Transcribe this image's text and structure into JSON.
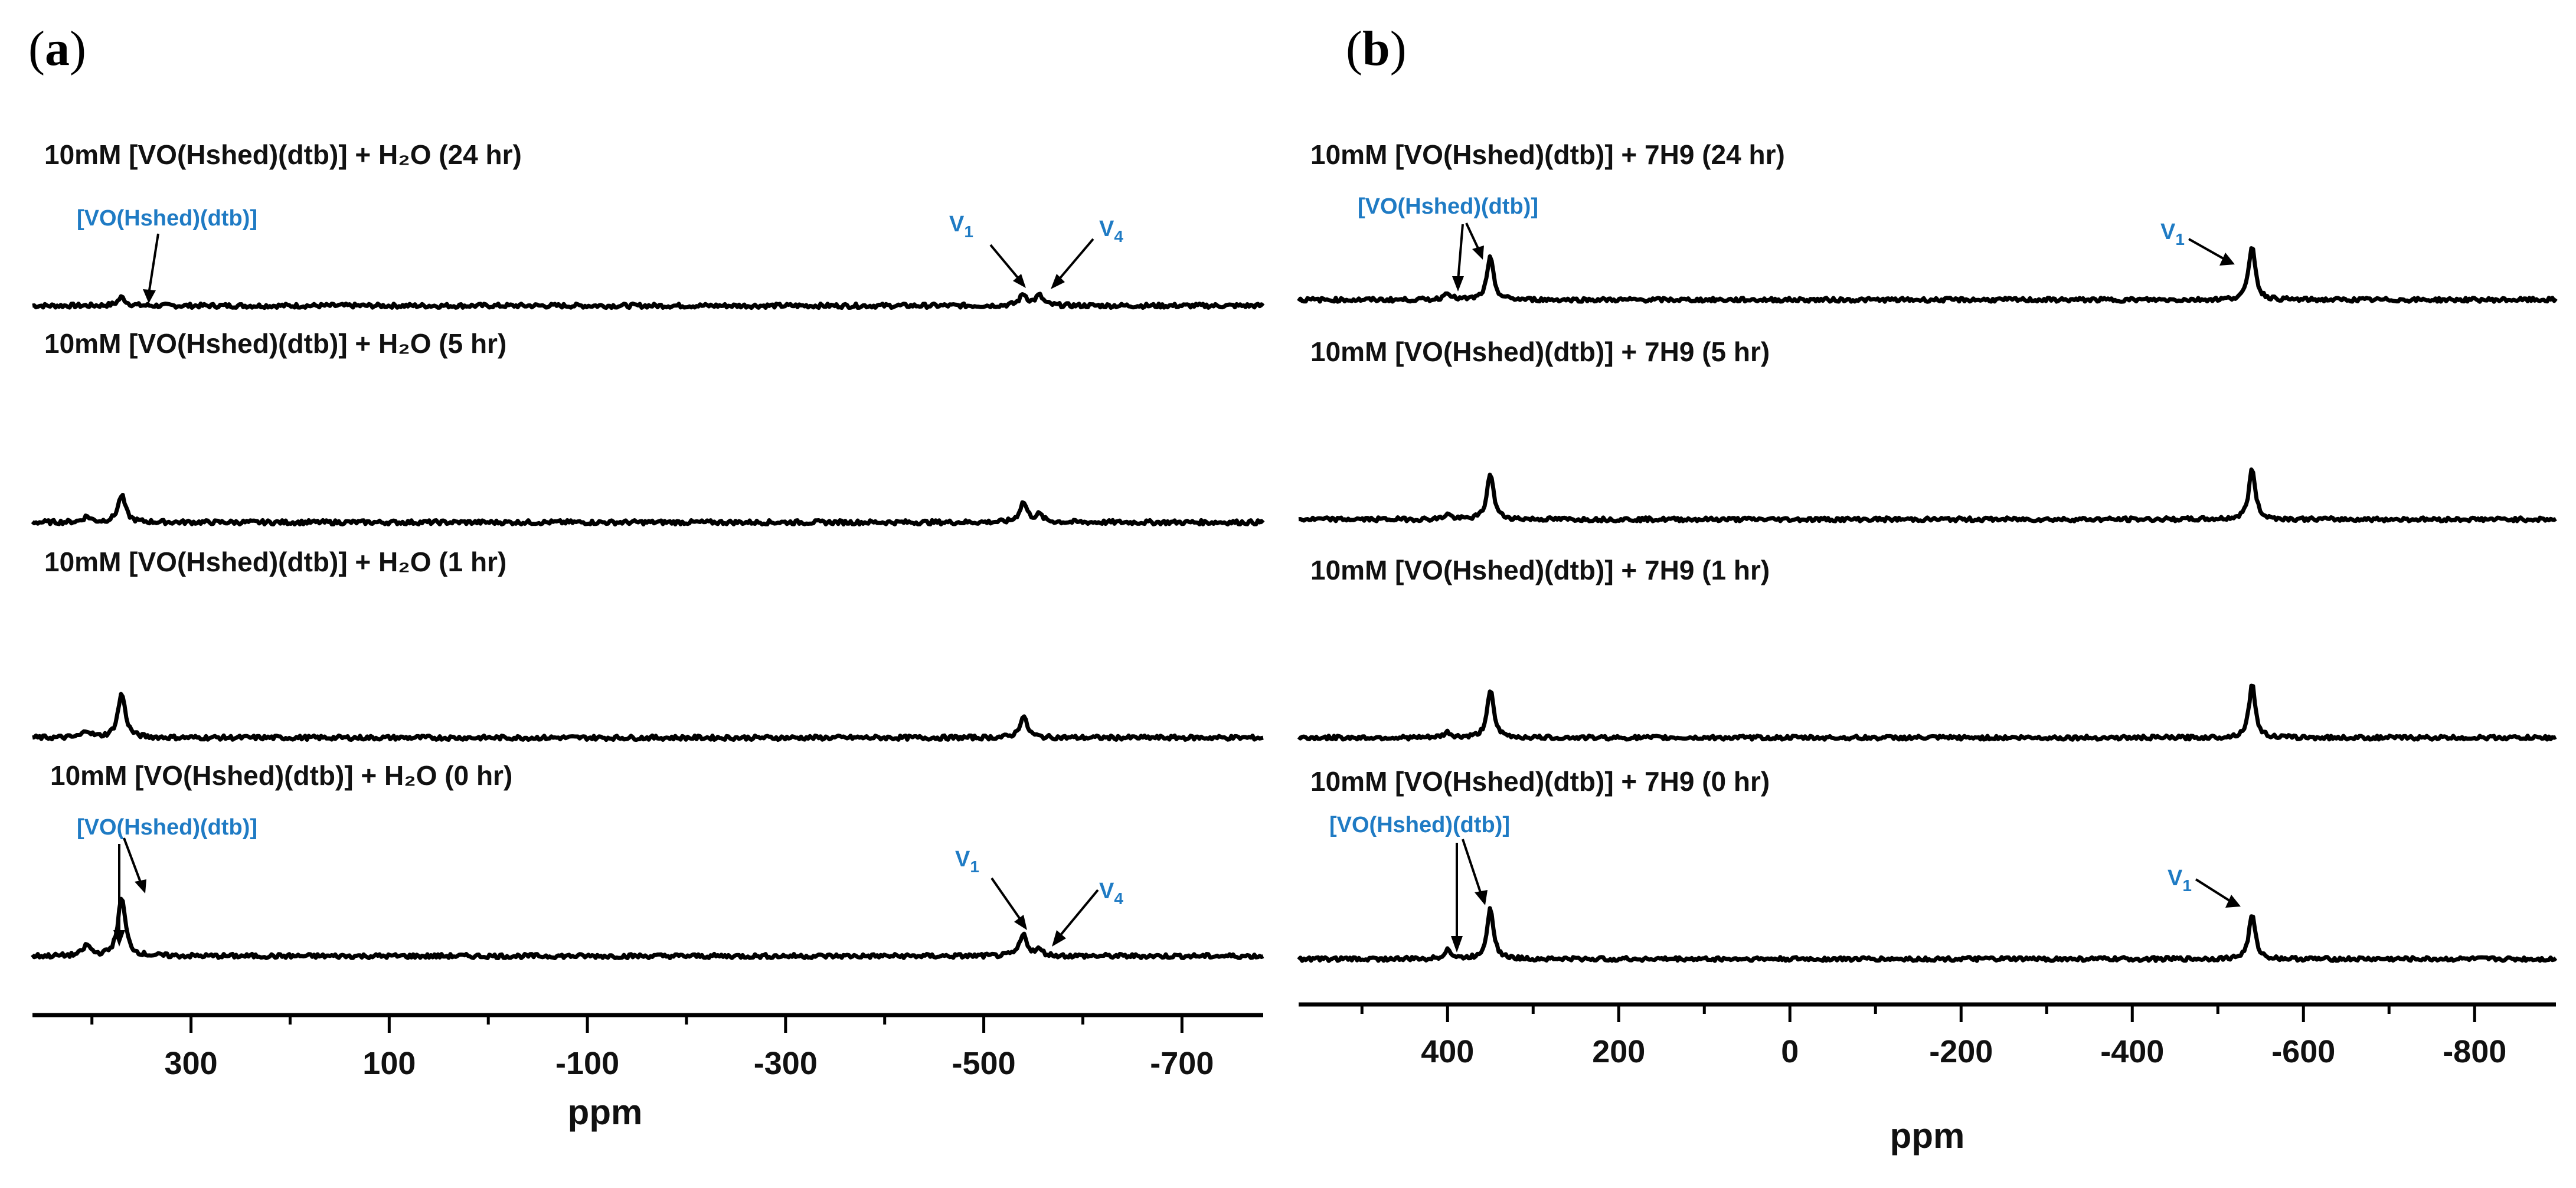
{
  "panels": [
    {
      "letter": "a",
      "axis_title": "ppm",
      "ticks": [
        "300",
        "100",
        "-100",
        "-300",
        "-500",
        "-700"
      ]
    },
    {
      "letter": "b",
      "axis_title": "ppm",
      "ticks": [
        "400",
        "200",
        "0",
        "-200",
        "-400",
        "-600",
        "-800"
      ]
    }
  ],
  "chart_data": [
    {
      "type": "line",
      "title": "",
      "xlabel": "ppm",
      "ylabel": "",
      "xlim": [
        460,
        -782
      ],
      "x_reversed": true,
      "x_ticks": [
        300,
        100,
        -100,
        -300,
        -500,
        -700
      ],
      "grid": false,
      "series": [
        {
          "name": "10mM [VO(Hshed)(dtb)] + H₂O (24 hr)",
          "peaks": [
            {
              "ppm": 370,
              "height": 0.12
            },
            {
              "ppm": -540,
              "height": 0.16
            },
            {
              "ppm": -556,
              "height": 0.14
            }
          ]
        },
        {
          "name": "10mM [VO(Hshed)(dtb)] + H₂O (5 hr)",
          "peaks": [
            {
              "ppm": 405,
              "height": 0.08
            },
            {
              "ppm": 370,
              "height": 0.38
            },
            {
              "ppm": -540,
              "height": 0.28
            },
            {
              "ppm": -556,
              "height": 0.1
            }
          ]
        },
        {
          "name": "10mM [VO(Hshed)(dtb)] + H₂O (1 hr)",
          "peaks": [
            {
              "ppm": 405,
              "height": 0.1
            },
            {
              "ppm": 370,
              "height": 0.62
            },
            {
              "ppm": -540,
              "height": 0.3
            }
          ]
        },
        {
          "name": "10mM [VO(Hshed)(dtb)] + H₂O (0 hr)",
          "peaks": [
            {
              "ppm": 405,
              "height": 0.15
            },
            {
              "ppm": 370,
              "height": 0.82
            },
            {
              "ppm": -540,
              "height": 0.3
            },
            {
              "ppm": -556,
              "height": 0.08
            }
          ]
        }
      ],
      "annotations": [
        {
          "text": "[VO(Hshed)(dtb)]",
          "trace": 0
        },
        {
          "text": "V",
          "sub": "1",
          "trace": 0
        },
        {
          "text": "V",
          "sub": "4",
          "trace": 0
        },
        {
          "text": "[VO(Hshed)(dtb)]",
          "trace": 3
        },
        {
          "text": "V",
          "sub": "1",
          "trace": 3
        },
        {
          "text": "V",
          "sub": "4",
          "trace": 3
        }
      ]
    },
    {
      "type": "line",
      "title": "",
      "xlabel": "ppm",
      "ylabel": "",
      "xlim": [
        574,
        -895
      ],
      "x_reversed": true,
      "x_ticks": [
        400,
        200,
        0,
        -200,
        -400,
        -600,
        -800
      ],
      "grid": false,
      "series": [
        {
          "name": "10mM [VO(Hshed)(dtb)] + 7H9 (24 hr)",
          "peaks": [
            {
              "ppm": 400,
              "height": 0.12
            },
            {
              "ppm": 350,
              "height": 0.65
            },
            {
              "ppm": -540,
              "height": 0.85
            }
          ]
        },
        {
          "name": "10mM [VO(Hshed)(dtb)] + 7H9 (5 hr)",
          "peaks": [
            {
              "ppm": 400,
              "height": 0.08
            },
            {
              "ppm": 350,
              "height": 0.72
            },
            {
              "ppm": -540,
              "height": 0.78
            }
          ]
        },
        {
          "name": "10mM [VO(Hshed)(dtb)] + 7H9 (1 hr)",
          "peaks": [
            {
              "ppm": 400,
              "height": 0.08
            },
            {
              "ppm": 350,
              "height": 0.75
            },
            {
              "ppm": -540,
              "height": 0.82
            }
          ]
        },
        {
          "name": "10mM [VO(Hshed)(dtb)] + 7H9 (0 hr)",
          "peaks": [
            {
              "ppm": 400,
              "height": 0.15
            },
            {
              "ppm": 350,
              "height": 0.8
            },
            {
              "ppm": -540,
              "height": 0.68
            }
          ]
        }
      ],
      "annotations": [
        {
          "text": "[VO(Hshed)(dtb)]",
          "trace": 0
        },
        {
          "text": "V",
          "sub": "1",
          "trace": 0
        },
        {
          "text": "[VO(Hshed)(dtb)]",
          "trace": 3
        },
        {
          "text": "V",
          "sub": "1",
          "trace": 3
        }
      ]
    }
  ]
}
